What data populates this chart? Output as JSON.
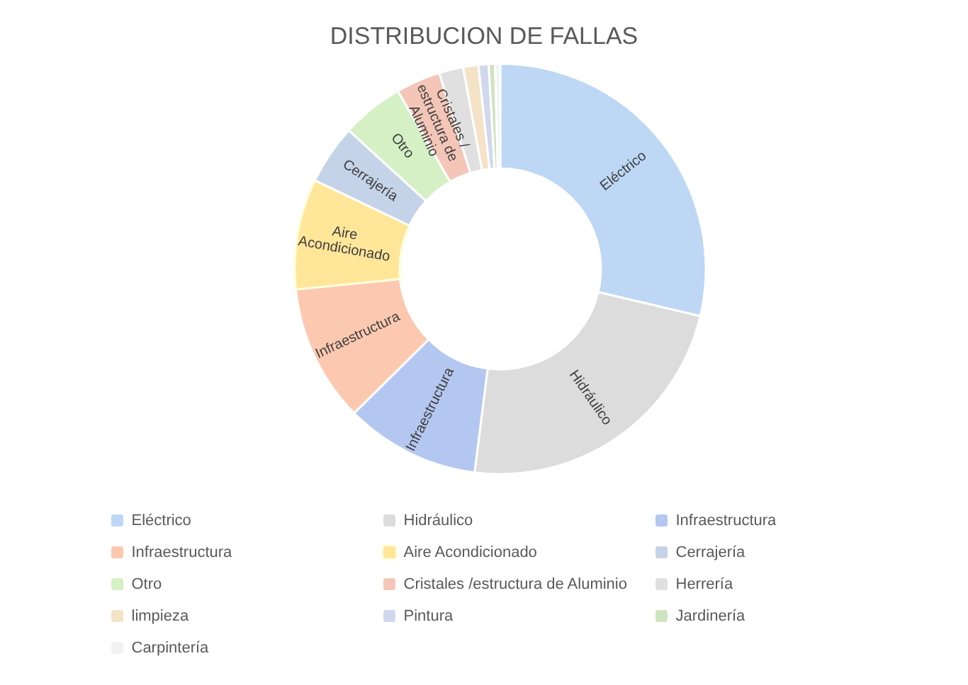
{
  "chart_data": {
    "type": "donut",
    "title": "DISTRIBUCION DE FALLAS",
    "categories": [
      "Eléctrico",
      "Hidráulico",
      "Infraestructura",
      "Infraestructura",
      "Aire Acondicionado",
      "Cerrajería",
      "Otro",
      "Cristales /estructura de Aluminio",
      "Herrería",
      "limpieza",
      "Pintura",
      "Jardinería",
      "Carpintería"
    ],
    "values": [
      28.7,
      23.3,
      10.6,
      10.8,
      8.7,
      4.7,
      4.9,
      3.5,
      1.9,
      1.2,
      0.8,
      0.5,
      0.4
    ],
    "colors": [
      "#bdd7f5",
      "#dcdcdc",
      "#b4c7f0",
      "#fcc9b0",
      "#ffe699",
      "#c5d3e8",
      "#d5f0c5",
      "#f4c6b8",
      "#e0e0e0",
      "#f5e3c8",
      "#d0d8ee",
      "#cfe3c0",
      "#f2f2f2"
    ],
    "legend": "bottom"
  }
}
